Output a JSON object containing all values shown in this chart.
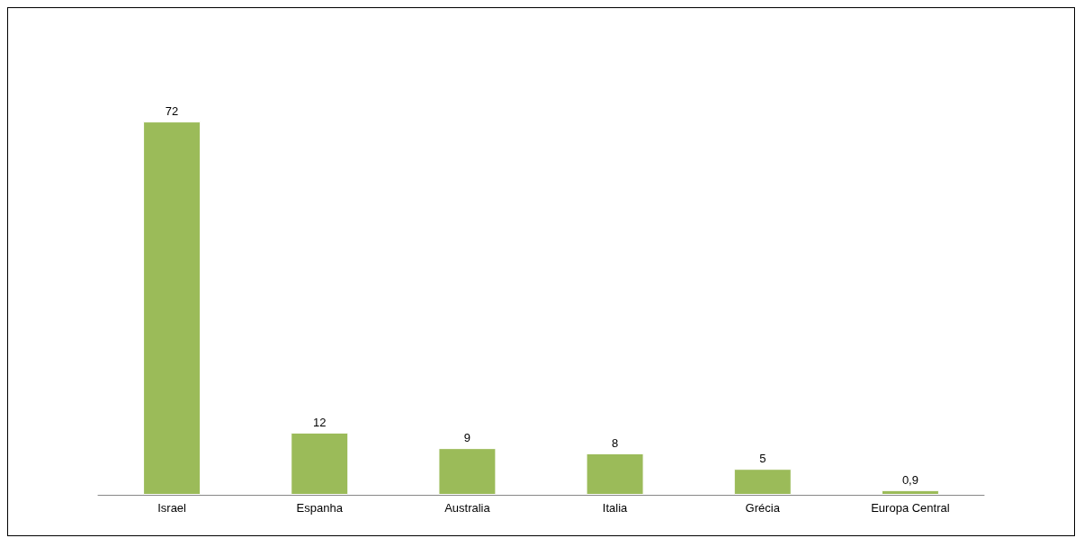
{
  "chart_data": {
    "type": "bar",
    "categories": [
      "Israel",
      "Espanha",
      "Australia",
      "Italia",
      "Grécia",
      "Europa Central"
    ],
    "values": [
      72,
      12,
      9,
      8,
      5,
      0.9
    ],
    "value_labels": [
      "72",
      "12",
      "9",
      "8",
      "5",
      "0,9"
    ],
    "color": "#9bbb59"
  }
}
